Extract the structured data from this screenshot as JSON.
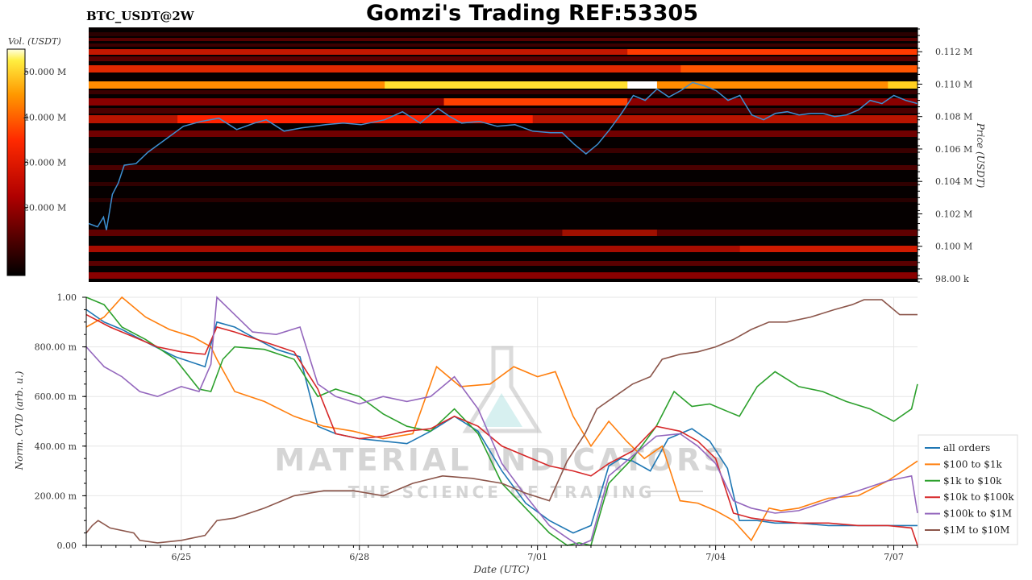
{
  "header": {
    "title": "Gomzi's Trading REF:53305",
    "symbol": "BTC_USDT@2W"
  },
  "watermark": {
    "brand": "MATERIAL INDICATORS",
    "tagline": "THE SCIENCE OF TRADING"
  },
  "colors": {
    "all_orders": "#1f77b4",
    "100_1k": "#ff7f0e",
    "1k_10k": "#2ca02c",
    "10k_100k": "#d62728",
    "100k_1m": "#9467bd",
    "1m_10m": "#8c564b",
    "price_line": "#3d8fd1"
  },
  "chart_data": [
    {
      "type": "heatmap",
      "title": "",
      "colorbar_label": "Vol. (USDT)",
      "colorbar_ticks": [
        "50.000 M",
        "40.000 M",
        "30.000 M",
        "20.000 M"
      ],
      "colorbar_tick_values": [
        50,
        40,
        30,
        20
      ],
      "colorbar_range": [
        5,
        55
      ],
      "ylabel": "Price (USDT)",
      "y_tick_labels": [
        "0.112 M",
        "0.110 M",
        "0.108 M",
        "0.106 M",
        "0.104 M",
        "0.102 M",
        "0.100 M",
        "98.00 k"
      ],
      "y_tick_values": [
        112000,
        110000,
        108000,
        106000,
        104000,
        102000,
        100000,
        98000
      ],
      "ylim": [
        97800,
        113500
      ],
      "x_range_days": [
        0,
        14
      ],
      "price_series": {
        "x": [
          0,
          0.15,
          0.25,
          0.3,
          0.4,
          0.5,
          0.6,
          0.8,
          1.0,
          1.3,
          1.6,
          1.9,
          2.2,
          2.5,
          2.8,
          3.0,
          3.3,
          3.6,
          4.0,
          4.3,
          4.6,
          5.0,
          5.3,
          5.6,
          5.9,
          6.1,
          6.3,
          6.6,
          6.9,
          7.2,
          7.5,
          7.8,
          8.0,
          8.2,
          8.4,
          8.6,
          8.8,
          9.0,
          9.2,
          9.4,
          9.6,
          9.8,
          10.0,
          10.2,
          10.4,
          10.6,
          10.8,
          11.0,
          11.2,
          11.4,
          11.6,
          11.8,
          12.0,
          12.2,
          12.4,
          12.6,
          12.8,
          13.0,
          13.2,
          13.4,
          13.6,
          13.8,
          14.0
        ],
        "y": [
          101400,
          101200,
          101800,
          101000,
          103200,
          103900,
          105000,
          105100,
          105800,
          106600,
          107400,
          107700,
          107900,
          107200,
          107600,
          107800,
          107100,
          107300,
          107500,
          107600,
          107500,
          107800,
          108300,
          107600,
          108500,
          108000,
          107600,
          107700,
          107400,
          107500,
          107100,
          107000,
          107000,
          106300,
          105700,
          106300,
          107200,
          108200,
          109300,
          109000,
          109700,
          109200,
          109600,
          110100,
          109900,
          109600,
          109000,
          109300,
          108100,
          107800,
          108200,
          108300,
          108100,
          108200,
          108200,
          108000,
          108100,
          108400,
          109000,
          108800,
          109300,
          109000,
          108800
        ]
      }
    },
    {
      "type": "line",
      "title": "",
      "xlabel": "Date (UTC)",
      "ylabel": "Norm. CVD (arb. u.)",
      "ylim": [
        0,
        1
      ],
      "y_tick_labels": [
        "1.00",
        "800.00 m",
        "600.00 m",
        "400.00 m",
        "200.00 m",
        "0.00"
      ],
      "y_tick_values": [
        1,
        0.8,
        0.6,
        0.4,
        0.2,
        0
      ],
      "x_range_days": [
        0,
        14
      ],
      "x_tick_labels": [
        "6/25",
        "6/28",
        "7/01",
        "7/04",
        "7/07"
      ],
      "x_tick_values": [
        1.6,
        4.6,
        7.6,
        10.6,
        13.6
      ],
      "grid": true,
      "legend_position": "right",
      "series": [
        {
          "name": "all orders",
          "color_key": "all_orders",
          "x": [
            0,
            0.3,
            0.6,
            1.0,
            1.5,
            2.0,
            2.2,
            2.5,
            2.8,
            3.2,
            3.6,
            3.9,
            4.2,
            4.6,
            5.0,
            5.4,
            5.8,
            6.2,
            6.6,
            7.0,
            7.4,
            7.8,
            8.2,
            8.5,
            8.8,
            9.0,
            9.2,
            9.5,
            9.8,
            10.2,
            10.5,
            10.8,
            11.0,
            11.3,
            11.6,
            12.0,
            12.5,
            13.0,
            13.5,
            14.0
          ],
          "y": [
            0.95,
            0.9,
            0.87,
            0.82,
            0.76,
            0.72,
            0.9,
            0.88,
            0.84,
            0.79,
            0.76,
            0.48,
            0.45,
            0.43,
            0.42,
            0.41,
            0.46,
            0.52,
            0.46,
            0.3,
            0.17,
            0.1,
            0.05,
            0.08,
            0.32,
            0.35,
            0.34,
            0.3,
            0.43,
            0.47,
            0.42,
            0.31,
            0.1,
            0.1,
            0.09,
            0.09,
            0.08,
            0.08,
            0.08,
            0.08
          ]
        },
        {
          "name": "$100 to $1k",
          "color_key": "100_1k",
          "x": [
            0,
            0.3,
            0.6,
            1.0,
            1.4,
            1.8,
            2.1,
            2.2,
            2.5,
            3.0,
            3.5,
            4.0,
            4.5,
            5.0,
            5.5,
            5.9,
            6.3,
            6.8,
            7.2,
            7.6,
            7.9,
            8.2,
            8.5,
            8.8,
            9.1,
            9.4,
            9.7,
            10.0,
            10.3,
            10.6,
            10.9,
            11.2,
            11.5,
            11.7,
            12.0,
            12.5,
            13.0,
            13.5,
            14.0
          ],
          "y": [
            0.88,
            0.92,
            1.0,
            0.92,
            0.87,
            0.84,
            0.8,
            0.75,
            0.62,
            0.58,
            0.52,
            0.48,
            0.46,
            0.43,
            0.45,
            0.72,
            0.64,
            0.65,
            0.72,
            0.68,
            0.7,
            0.52,
            0.4,
            0.5,
            0.42,
            0.35,
            0.4,
            0.18,
            0.17,
            0.14,
            0.1,
            0.02,
            0.15,
            0.14,
            0.15,
            0.19,
            0.2,
            0.26,
            0.34
          ]
        },
        {
          "name": "$1k to $10k",
          "color_key": "1k_10k",
          "x": [
            0,
            0.3,
            0.6,
            1.0,
            1.5,
            1.9,
            2.1,
            2.3,
            2.5,
            3.0,
            3.5,
            3.9,
            4.2,
            4.6,
            5.0,
            5.4,
            5.8,
            6.2,
            6.6,
            7.0,
            7.4,
            7.8,
            8.1,
            8.3,
            8.5,
            8.8,
            9.2,
            9.6,
            9.9,
            10.2,
            10.5,
            10.8,
            11.0,
            11.3,
            11.6,
            12.0,
            12.4,
            12.8,
            13.2,
            13.6,
            13.9,
            14.0
          ],
          "y": [
            1.0,
            0.97,
            0.88,
            0.83,
            0.75,
            0.63,
            0.62,
            0.75,
            0.8,
            0.79,
            0.75,
            0.6,
            0.63,
            0.6,
            0.53,
            0.48,
            0.46,
            0.55,
            0.45,
            0.25,
            0.15,
            0.05,
            0.0,
            0.01,
            0.0,
            0.25,
            0.35,
            0.48,
            0.62,
            0.56,
            0.57,
            0.54,
            0.52,
            0.64,
            0.7,
            0.64,
            0.62,
            0.58,
            0.55,
            0.5,
            0.55,
            0.65
          ]
        },
        {
          "name": "$10k to $100k",
          "color_key": "10k_100k",
          "x": [
            0,
            0.4,
            0.8,
            1.2,
            1.6,
            2.0,
            2.2,
            2.5,
            3.0,
            3.5,
            3.9,
            4.2,
            4.6,
            5.0,
            5.4,
            5.8,
            6.2,
            6.6,
            7.0,
            7.4,
            7.8,
            8.2,
            8.5,
            8.8,
            9.2,
            9.6,
            10.0,
            10.3,
            10.6,
            10.9,
            11.2,
            11.5,
            12.0,
            12.5,
            13.0,
            13.5,
            13.9,
            14.0
          ],
          "y": [
            0.93,
            0.88,
            0.84,
            0.8,
            0.78,
            0.77,
            0.88,
            0.86,
            0.82,
            0.78,
            0.63,
            0.45,
            0.43,
            0.44,
            0.46,
            0.47,
            0.52,
            0.48,
            0.4,
            0.36,
            0.32,
            0.3,
            0.28,
            0.33,
            0.38,
            0.48,
            0.46,
            0.42,
            0.35,
            0.13,
            0.11,
            0.1,
            0.09,
            0.09,
            0.08,
            0.08,
            0.07,
            0.0
          ]
        },
        {
          "name": "$100k to $1M",
          "color_key": "100k_1m",
          "x": [
            0,
            0.3,
            0.6,
            0.9,
            1.2,
            1.6,
            1.9,
            2.1,
            2.2,
            2.5,
            2.8,
            3.2,
            3.6,
            3.9,
            4.2,
            4.6,
            5.0,
            5.4,
            5.8,
            6.2,
            6.6,
            7.0,
            7.4,
            7.8,
            8.1,
            8.3,
            8.5,
            8.8,
            9.2,
            9.6,
            10.0,
            10.3,
            10.6,
            10.9,
            11.2,
            11.6,
            12.0,
            12.5,
            13.0,
            13.5,
            13.9,
            14.0
          ],
          "y": [
            0.8,
            0.72,
            0.68,
            0.62,
            0.6,
            0.64,
            0.62,
            0.73,
            1.0,
            0.93,
            0.86,
            0.85,
            0.88,
            0.65,
            0.6,
            0.57,
            0.6,
            0.58,
            0.6,
            0.68,
            0.55,
            0.33,
            0.2,
            0.08,
            0.03,
            0.0,
            0.02,
            0.28,
            0.36,
            0.44,
            0.45,
            0.4,
            0.33,
            0.18,
            0.15,
            0.13,
            0.14,
            0.18,
            0.22,
            0.26,
            0.28,
            0.13
          ]
        },
        {
          "name": "$1M to $10M",
          "color_key": "1m_10m",
          "x": [
            0,
            0.1,
            0.2,
            0.4,
            0.8,
            0.9,
            1.2,
            1.6,
            2.0,
            2.2,
            2.5,
            3.0,
            3.5,
            4.0,
            4.5,
            5.0,
            5.5,
            6.0,
            6.5,
            7.0,
            7.4,
            7.8,
            8.1,
            8.4,
            8.6,
            8.9,
            9.2,
            9.5,
            9.7,
            10.0,
            10.3,
            10.6,
            10.9,
            11.2,
            11.5,
            11.8,
            12.2,
            12.6,
            12.9,
            13.1,
            13.4,
            13.7,
            14.0
          ],
          "y": [
            0.05,
            0.08,
            0.1,
            0.07,
            0.05,
            0.02,
            0.01,
            0.02,
            0.04,
            0.1,
            0.11,
            0.15,
            0.2,
            0.22,
            0.22,
            0.2,
            0.25,
            0.28,
            0.27,
            0.25,
            0.21,
            0.18,
            0.34,
            0.45,
            0.55,
            0.6,
            0.65,
            0.68,
            0.75,
            0.77,
            0.78,
            0.8,
            0.83,
            0.87,
            0.9,
            0.9,
            0.92,
            0.95,
            0.97,
            0.99,
            0.99,
            0.93,
            0.93
          ]
        }
      ]
    }
  ]
}
